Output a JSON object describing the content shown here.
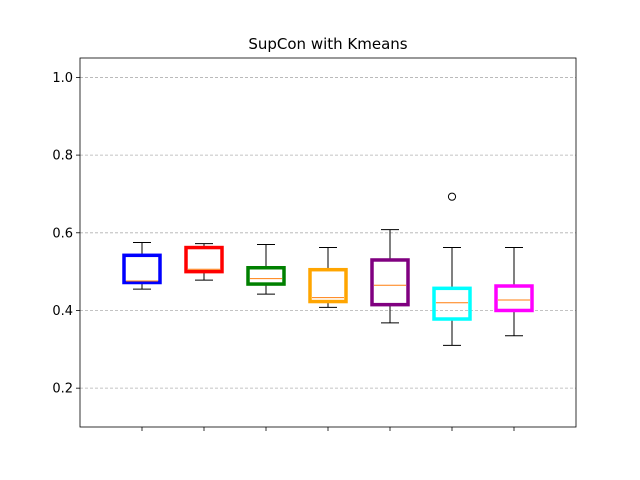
{
  "chart_data": {
    "type": "box",
    "title": "SupCon with Kmeans",
    "xlabel": "",
    "ylabel": "",
    "ylim": [
      0.1,
      1.05
    ],
    "yticks": [
      0.2,
      0.4,
      0.6,
      0.8,
      1.0
    ],
    "ytick_labels": [
      "0.2",
      "0.4",
      "0.6",
      "0.8",
      "1.0"
    ],
    "grid": {
      "y": true,
      "x": false,
      "style": "dashed"
    },
    "boxes": [
      {
        "color": "#0000ff",
        "whisker_low": 0.455,
        "q1": 0.472,
        "median": 0.476,
        "q3": 0.542,
        "whisker_high": 0.575,
        "outliers": []
      },
      {
        "color": "#ff0000",
        "whisker_low": 0.478,
        "q1": 0.5,
        "median": 0.506,
        "q3": 0.562,
        "whisker_high": 0.572,
        "outliers": []
      },
      {
        "color": "#008000",
        "whisker_low": 0.442,
        "q1": 0.468,
        "median": 0.482,
        "q3": 0.51,
        "whisker_high": 0.57,
        "outliers": []
      },
      {
        "color": "#ffa500",
        "whisker_low": 0.408,
        "q1": 0.423,
        "median": 0.433,
        "q3": 0.505,
        "whisker_high": 0.562,
        "outliers": []
      },
      {
        "color": "#800080",
        "whisker_low": 0.368,
        "q1": 0.415,
        "median": 0.465,
        "q3": 0.53,
        "whisker_high": 0.608,
        "outliers": []
      },
      {
        "color": "#00ffff",
        "whisker_low": 0.31,
        "q1": 0.378,
        "median": 0.42,
        "q3": 0.457,
        "whisker_high": 0.562,
        "outliers": [
          0.693
        ]
      },
      {
        "color": "#ff00ff",
        "whisker_low": 0.335,
        "q1": 0.4,
        "median": 0.427,
        "q3": 0.463,
        "whisker_high": 0.562,
        "outliers": []
      }
    ],
    "median_color": "#ff7f0e"
  }
}
